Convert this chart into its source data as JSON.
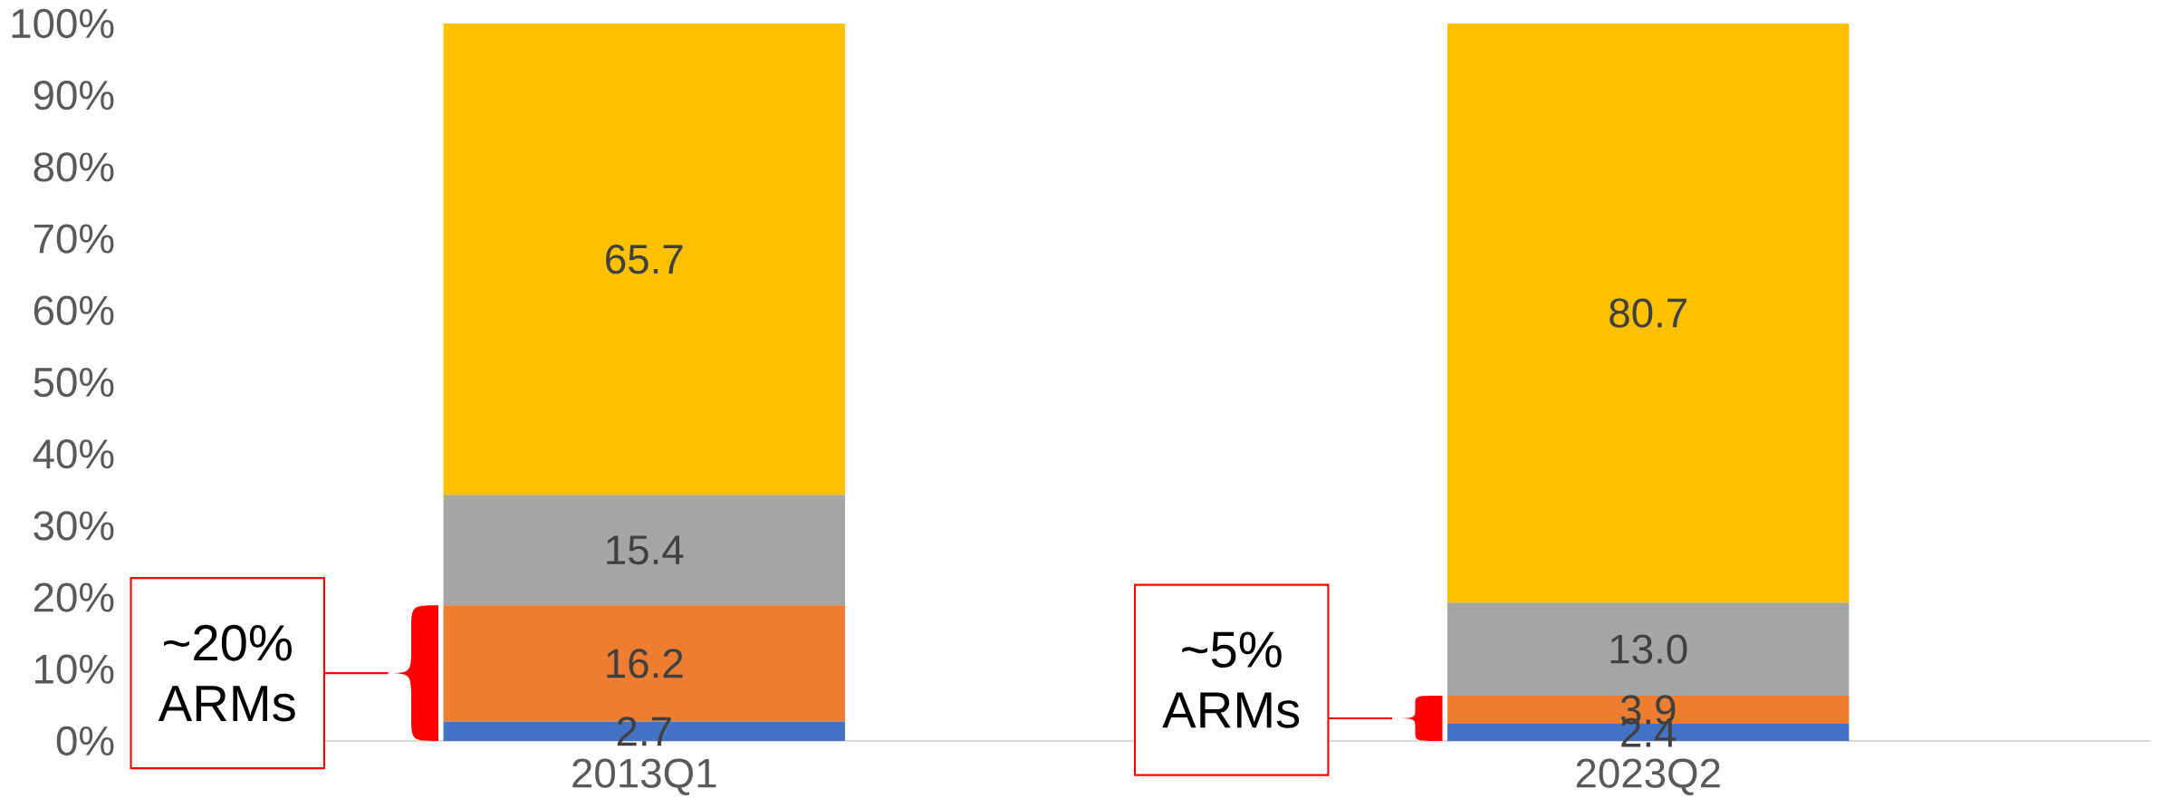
{
  "chart_data": {
    "type": "bar",
    "stacked": true,
    "categories": [
      "2013Q1",
      "2023Q2"
    ],
    "series": [
      {
        "color": "#4472c4",
        "values": [
          2.7,
          2.4
        ],
        "value_labels": [
          "2.7",
          "2.4"
        ]
      },
      {
        "color": "#ed7d31",
        "values": [
          16.2,
          3.9
        ],
        "value_labels": [
          "16.2",
          "3.9"
        ]
      },
      {
        "color": "#a5a5a5",
        "values": [
          15.4,
          13.0
        ],
        "value_labels": [
          "15.4",
          "13.0"
        ]
      },
      {
        "color": "#ffc000",
        "values": [
          65.7,
          80.7
        ],
        "value_labels": [
          "65.7",
          "80.7"
        ]
      }
    ],
    "ylim": [
      0,
      100
    ],
    "yticks": [
      {
        "value": 0,
        "label": "0%"
      },
      {
        "value": 10,
        "label": "10%"
      },
      {
        "value": 20,
        "label": "20%"
      },
      {
        "value": 30,
        "label": "30%"
      },
      {
        "value": 40,
        "label": "40%"
      },
      {
        "value": 50,
        "label": "50%"
      },
      {
        "value": 60,
        "label": "60%"
      },
      {
        "value": 70,
        "label": "70%"
      },
      {
        "value": 80,
        "label": "80%"
      },
      {
        "value": 90,
        "label": "90%"
      },
      {
        "value": 100,
        "label": "100%"
      }
    ],
    "annotations": [
      "~20% ARMs",
      "~5% ARMs"
    ]
  }
}
